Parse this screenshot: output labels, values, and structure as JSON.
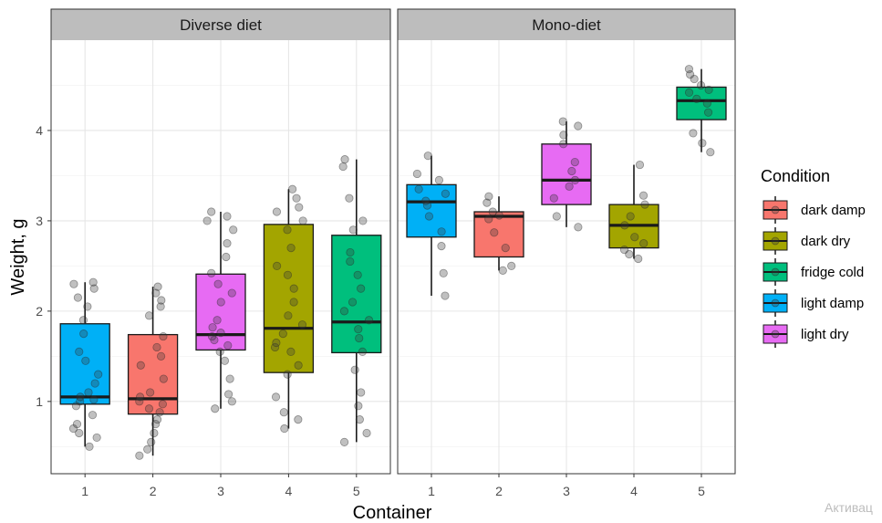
{
  "chart_data": {
    "type": "boxplot",
    "xlabel": "Container",
    "ylabel": "Weight, g",
    "ylim": [
      0.2,
      5.0
    ],
    "yticks": [
      1,
      2,
      3,
      4
    ],
    "categories": [
      "1",
      "2",
      "3",
      "4",
      "5"
    ],
    "grid": true,
    "legend": {
      "title": "Condition",
      "placement": "right",
      "entries": [
        {
          "name": "dark damp",
          "color": "#F8766D"
        },
        {
          "name": "dark dry",
          "color": "#A3A500"
        },
        {
          "name": "fridge cold",
          "color": "#00BF7D"
        },
        {
          "name": "light damp",
          "color": "#00B0F6"
        },
        {
          "name": "light dry",
          "color": "#E76BF3"
        }
      ]
    },
    "panels": [
      {
        "title": "Diverse diet",
        "boxes": [
          {
            "x": "1",
            "condition": "light damp",
            "min": 0.5,
            "q1": 0.97,
            "median": 1.05,
            "q3": 1.86,
            "max": 2.32,
            "points": [
              0.5,
              0.6,
              0.65,
              0.7,
              0.75,
              0.85,
              0.95,
              1.0,
              1.02,
              1.05,
              1.1,
              1.2,
              1.3,
              1.45,
              1.55,
              1.75,
              1.9,
              2.05,
              2.15,
              2.25,
              2.3,
              2.32
            ]
          },
          {
            "x": "2",
            "condition": "dark damp",
            "min": 0.4,
            "q1": 0.86,
            "median": 1.03,
            "q3": 1.74,
            "max": 2.27,
            "points": [
              0.4,
              0.47,
              0.55,
              0.65,
              0.75,
              0.8,
              0.88,
              0.92,
              0.97,
              1.0,
              1.05,
              1.1,
              1.25,
              1.4,
              1.5,
              1.6,
              1.72,
              1.95,
              2.05,
              2.12,
              2.2,
              2.27
            ]
          },
          {
            "x": "3",
            "condition": "light dry",
            "min": 0.92,
            "q1": 1.57,
            "median": 1.74,
            "q3": 2.41,
            "max": 3.1,
            "points": [
              0.92,
              1.0,
              1.08,
              1.25,
              1.45,
              1.55,
              1.62,
              1.68,
              1.72,
              1.76,
              1.82,
              1.9,
              2.1,
              2.2,
              2.3,
              2.42,
              2.6,
              2.75,
              2.9,
              3.0,
              3.05,
              3.1
            ]
          },
          {
            "x": "4",
            "condition": "dark dry",
            "min": 0.7,
            "q1": 1.32,
            "median": 1.81,
            "q3": 2.96,
            "max": 3.35,
            "points": [
              0.7,
              0.8,
              0.88,
              1.05,
              1.3,
              1.4,
              1.55,
              1.6,
              1.65,
              1.75,
              1.85,
              1.95,
              2.1,
              2.25,
              2.4,
              2.5,
              2.7,
              2.9,
              3.0,
              3.1,
              3.15,
              3.25,
              3.35
            ]
          },
          {
            "x": "5",
            "condition": "fridge cold",
            "min": 0.55,
            "q1": 1.54,
            "median": 1.88,
            "q3": 2.84,
            "max": 3.68,
            "points": [
              0.55,
              0.65,
              0.8,
              0.95,
              1.1,
              1.35,
              1.55,
              1.7,
              1.8,
              1.9,
              2.0,
              2.1,
              2.25,
              2.4,
              2.55,
              2.65,
              2.9,
              3.0,
              3.25,
              3.6,
              3.68
            ]
          }
        ]
      },
      {
        "title": "Mono-diet",
        "boxes": [
          {
            "x": "1",
            "condition": "light damp",
            "min": 2.17,
            "q1": 2.82,
            "median": 3.21,
            "q3": 3.4,
            "max": 3.72,
            "points": [
              2.17,
              2.42,
              2.72,
              2.88,
              3.05,
              3.17,
              3.22,
              3.3,
              3.35,
              3.45,
              3.52,
              3.72
            ]
          },
          {
            "x": "2",
            "condition": "dark damp",
            "min": 2.45,
            "q1": 2.6,
            "median": 3.05,
            "q3": 3.1,
            "max": 3.27,
            "points": [
              2.45,
              2.5,
              2.7,
              2.87,
              3.02,
              3.06,
              3.1,
              3.2,
              3.27
            ]
          },
          {
            "x": "3",
            "condition": "light dry",
            "min": 2.93,
            "q1": 3.18,
            "median": 3.45,
            "q3": 3.85,
            "max": 4.1,
            "points": [
              2.93,
              3.05,
              3.25,
              3.38,
              3.45,
              3.55,
              3.65,
              3.85,
              3.95,
              4.05,
              4.1
            ]
          },
          {
            "x": "4",
            "condition": "dark dry",
            "min": 2.58,
            "q1": 2.7,
            "median": 2.95,
            "q3": 3.18,
            "max": 3.62,
            "points": [
              2.58,
              2.63,
              2.68,
              2.75,
              2.82,
              2.95,
              3.05,
              3.18,
              3.28,
              3.62
            ]
          },
          {
            "x": "5",
            "condition": "fridge cold",
            "min": 3.76,
            "q1": 4.12,
            "median": 4.33,
            "q3": 4.48,
            "max": 4.68,
            "points": [
              3.76,
              3.86,
              3.97,
              4.2,
              4.3,
              4.35,
              4.42,
              4.45,
              4.5,
              4.57,
              4.62,
              4.68
            ]
          }
        ]
      }
    ]
  },
  "watermark": "Активац"
}
